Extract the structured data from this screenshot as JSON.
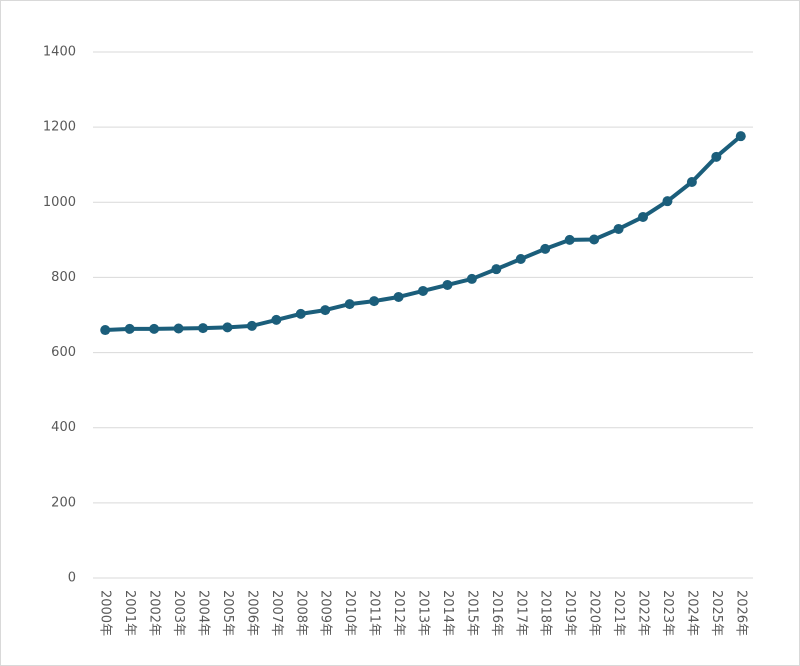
{
  "chart_data": {
    "type": "line",
    "categories": [
      "2000年",
      "2001年",
      "2002年",
      "2003年",
      "2004年",
      "2005年",
      "2006年",
      "2007年",
      "2008年",
      "2009年",
      "2010年",
      "2011年",
      "2012年",
      "2013年",
      "2014年",
      "2015年",
      "2016年",
      "2017年",
      "2018年",
      "2019年",
      "2020年",
      "2021年",
      "2022年",
      "2023年",
      "2024年",
      "2025年",
      "2026年"
    ],
    "values": [
      660,
      663,
      663,
      664,
      665,
      667,
      671,
      687,
      703,
      713,
      729,
      737,
      748,
      764,
      780,
      796,
      822,
      849,
      876,
      900,
      901,
      929,
      961,
      1003,
      1054,
      1121,
      1176
    ],
    "color": "#1b5e7b",
    "ylim": [
      0,
      1400
    ],
    "yticks": [
      0,
      200,
      400,
      600,
      800,
      1000,
      1200,
      1400
    ],
    "grid": true
  }
}
